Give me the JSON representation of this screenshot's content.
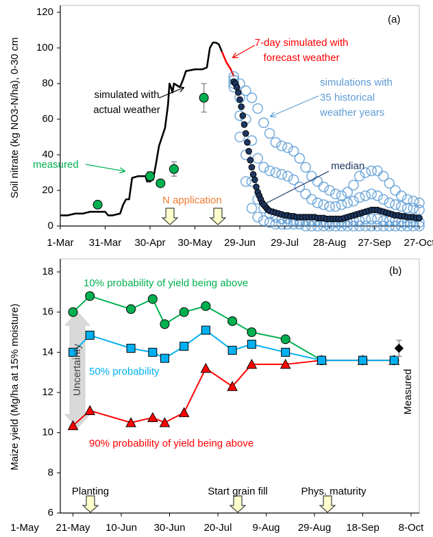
{
  "chart_data": [
    {
      "type": "line",
      "title": "(a)",
      "y_label": "Soil nitrate (kg NO3-N/ha), 0-30 cm",
      "xlim": [
        0,
        240
      ],
      "xticks": [
        {
          "value": 0,
          "label": "1-Mar"
        },
        {
          "value": 30,
          "label": "31-Mar"
        },
        {
          "value": 60,
          "label": "30-Apr"
        },
        {
          "value": 90,
          "label": "30-May"
        },
        {
          "value": 120,
          "label": "29-Jun"
        },
        {
          "value": 150,
          "label": "29-Jul"
        },
        {
          "value": 180,
          "label": "28-Aug"
        },
        {
          "value": 210,
          "label": "27-Sep"
        },
        {
          "value": 240,
          "label": "27-Oct"
        }
      ],
      "ylim": [
        0,
        120
      ],
      "yticks": [
        0,
        20,
        40,
        60,
        80,
        100,
        120
      ],
      "annotations": [
        "N application"
      ],
      "series": [
        {
          "name": "simulated with\nactual weather",
          "color": "#000000",
          "line": true,
          "marker": "none",
          "x": [
            0,
            5,
            10,
            15,
            20,
            25,
            30,
            32,
            35,
            40,
            42,
            44,
            46,
            48,
            52,
            57,
            58,
            60,
            62,
            64,
            66,
            68,
            70,
            72,
            73,
            74,
            75,
            76,
            78,
            80,
            82,
            84,
            90,
            95,
            98,
            100,
            102,
            104,
            106,
            108
          ],
          "values": [
            6,
            6,
            7,
            7,
            8,
            8,
            8,
            6,
            6,
            7,
            12,
            15,
            15,
            27,
            28,
            28,
            25,
            25,
            26,
            35,
            45,
            50,
            55,
            68,
            80,
            78,
            75,
            80,
            79,
            78,
            82,
            87,
            88,
            88,
            89,
            100,
            103,
            103,
            102,
            98
          ]
        },
        {
          "name": "7-day simulated with\nforecast weather",
          "color": "#ff0000",
          "line": true,
          "marker": "none",
          "x": [
            108,
            111,
            114,
            116
          ],
          "values": [
            98,
            92,
            88,
            84
          ]
        },
        {
          "name": "simulations with\n35 historical\nweather years",
          "color": "#5b9bd5",
          "line": false,
          "marker": "ring",
          "x": [
            116,
            120,
            124,
            128,
            132,
            136,
            140,
            144,
            148,
            152,
            156,
            160,
            164,
            168,
            172,
            176,
            180,
            184,
            188,
            192,
            196,
            200,
            204,
            208,
            212,
            216,
            220,
            224,
            228,
            232,
            236,
            240
          ],
          "values": [
            [
              84,
              80,
              76,
              72,
              66,
              58,
              52,
              47,
              45,
              44,
              42,
              38,
              33,
              28,
              25,
              22,
              20,
              18,
              17,
              19,
              23,
              28,
              30,
              31,
              31,
              28,
              24,
              20,
              17,
              15,
              14,
              13
            ],
            [
              82,
              72,
              60,
              48,
              38,
              33,
              31,
              30,
              29,
              28,
              26,
              22,
              18,
              15,
              13,
              12,
              11,
              11,
              12,
              13,
              14,
              16,
              17,
              18,
              17,
              15,
              13,
              12,
              11,
              10,
              10,
              9
            ],
            [
              80,
              62,
              40,
              25,
              15,
              10,
              7,
              5,
              4,
              4,
              3,
              3,
              3,
              3,
              3,
              2,
              2,
              2,
              2,
              2,
              3,
              3,
              4,
              4,
              4,
              3,
              3,
              3,
              2,
              2,
              2,
              2
            ],
            [
              78,
              50,
              25,
              10,
              5,
              3,
              2,
              1,
              1,
              1,
              1,
              1,
              0,
              0,
              0,
              0,
              0,
              0,
              0,
              0,
              0,
              0,
              0,
              0,
              0,
              0,
              0,
              0,
              0,
              0,
              0,
              0
            ]
          ]
        },
        {
          "name": "median",
          "color": "#1f3864",
          "line": false,
          "marker": "dot",
          "x": [
            116,
            117,
            118,
            119,
            120,
            121,
            122,
            123,
            124,
            125,
            126,
            127,
            128,
            129,
            130,
            131,
            132,
            133,
            134,
            135,
            136,
            137,
            138,
            139,
            140,
            142,
            144,
            146,
            148,
            150,
            152,
            154,
            156,
            158,
            160,
            162,
            164,
            166,
            168,
            170,
            172,
            174,
            176,
            178,
            180,
            182,
            184,
            186,
            188,
            190,
            192,
            194,
            196,
            198,
            200,
            202,
            204,
            206,
            208,
            210,
            212,
            214,
            216,
            218,
            220,
            222,
            224,
            226,
            228,
            230,
            232,
            234,
            236,
            238,
            240
          ],
          "values": [
            81,
            80,
            78,
            75,
            71,
            67,
            62,
            57,
            52,
            47,
            42,
            37,
            33,
            29,
            26,
            22,
            19,
            17,
            15,
            13,
            12,
            11,
            10,
            9,
            8.5,
            8,
            7.5,
            7,
            6.5,
            6,
            6,
            5.5,
            5.5,
            5,
            5,
            5,
            5,
            5,
            5,
            5,
            4.5,
            4.5,
            4.5,
            4,
            4,
            4,
            4,
            4,
            4,
            4.5,
            5,
            5.5,
            6,
            6.5,
            7,
            7.5,
            8,
            8.5,
            9,
            9,
            9,
            8.5,
            8,
            7.5,
            7,
            6.5,
            6,
            6,
            5.5,
            5.5,
            5,
            5,
            5,
            4.5,
            4.5
          ]
        },
        {
          "name": "measured",
          "color": "#00b050",
          "line": false,
          "marker": "circle",
          "x": [
            25,
            60,
            67,
            76,
            96
          ],
          "values": [
            12,
            28,
            24,
            32,
            72
          ],
          "errors": [
            null,
            2.5,
            null,
            4,
            8
          ]
        }
      ]
    },
    {
      "type": "line",
      "title": "(b)",
      "y_label": "Maize yield (Mg/ha at 15% moisture)",
      "xlim": [
        0,
        160
      ],
      "xticks": [
        {
          "value": 0,
          "label": "1-May"
        },
        {
          "value": 20,
          "label": "21-May"
        },
        {
          "value": 40,
          "label": "10-Jun"
        },
        {
          "value": 60,
          "label": "30-Jun"
        },
        {
          "value": 80,
          "label": "20-Jul"
        },
        {
          "value": 100,
          "label": "9-Aug"
        },
        {
          "value": 120,
          "label": "29-Aug"
        },
        {
          "value": 140,
          "label": "18-Sep"
        },
        {
          "value": 160,
          "label": "8-Oct"
        }
      ],
      "ylim": [
        6,
        18
      ],
      "yticks": [
        6,
        8,
        10,
        12,
        14,
        16,
        18
      ],
      "annotations": [
        "Uncertainty",
        "Planting",
        "Start grain fill",
        "Phys. maturity"
      ],
      "x": [
        20,
        27,
        44,
        53,
        58,
        66,
        75,
        86,
        94,
        108,
        123,
        140,
        153
      ],
      "series": [
        {
          "name": "10% probability of yield being above",
          "color": "#00b050",
          "line": true,
          "marker": "circle",
          "values": [
            16.0,
            16.8,
            16.15,
            16.65,
            15.4,
            16.0,
            16.3,
            15.55,
            15.0,
            14.65,
            13.6,
            13.6,
            13.6
          ]
        },
        {
          "name": "90% probability of yield being above",
          "color": "#ff0000",
          "line": true,
          "marker": "triangle",
          "values": [
            10.35,
            11.1,
            10.5,
            10.75,
            10.5,
            11.0,
            13.2,
            12.3,
            13.4,
            13.4,
            13.6,
            13.6,
            13.6
          ]
        },
        {
          "name": "50% probability",
          "color": "#00b0f0",
          "line": true,
          "marker": "square",
          "values": [
            14.0,
            14.85,
            14.2,
            14.0,
            13.7,
            14.3,
            15.1,
            14.1,
            14.4,
            14.0,
            13.6,
            13.6,
            13.6
          ]
        },
        {
          "name": "Measured",
          "color": "#000000",
          "line": false,
          "marker": "diamond",
          "x": [
            155
          ],
          "values": [
            14.2
          ],
          "errors": [
            0.4
          ]
        }
      ]
    }
  ]
}
